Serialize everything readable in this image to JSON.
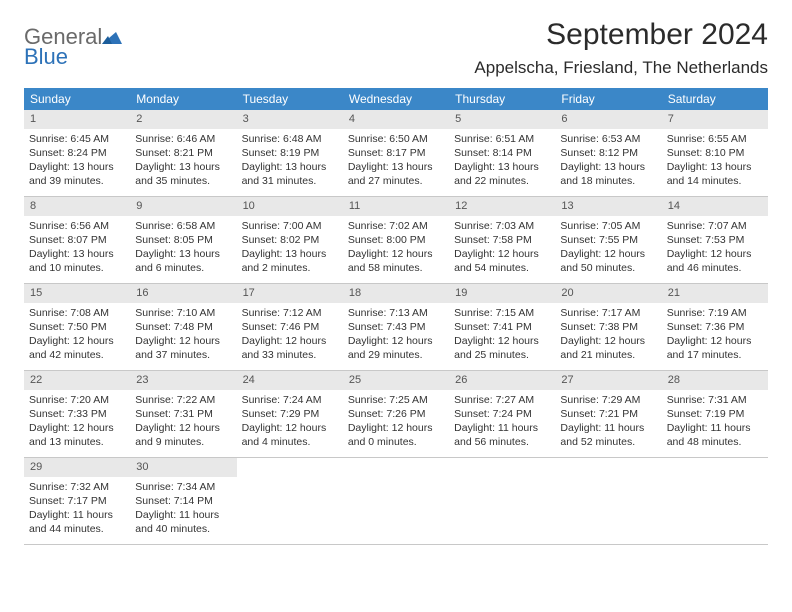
{
  "logo": {
    "part1": "General",
    "part2": "Blue"
  },
  "title": "September 2024",
  "location": "Appelscha, Friesland, The Netherlands",
  "colors": {
    "header_bg": "#3b87c8",
    "daynum_bg": "#e8e8e8",
    "border": "#c8c8c8",
    "logo_blue": "#2d72b8",
    "logo_gray": "#6a6a6a"
  },
  "days_of_week": [
    "Sunday",
    "Monday",
    "Tuesday",
    "Wednesday",
    "Thursday",
    "Friday",
    "Saturday"
  ],
  "weeks": [
    [
      {
        "n": "1",
        "sr": "Sunrise: 6:45 AM",
        "ss": "Sunset: 8:24 PM",
        "d1": "Daylight: 13 hours",
        "d2": "and 39 minutes."
      },
      {
        "n": "2",
        "sr": "Sunrise: 6:46 AM",
        "ss": "Sunset: 8:21 PM",
        "d1": "Daylight: 13 hours",
        "d2": "and 35 minutes."
      },
      {
        "n": "3",
        "sr": "Sunrise: 6:48 AM",
        "ss": "Sunset: 8:19 PM",
        "d1": "Daylight: 13 hours",
        "d2": "and 31 minutes."
      },
      {
        "n": "4",
        "sr": "Sunrise: 6:50 AM",
        "ss": "Sunset: 8:17 PM",
        "d1": "Daylight: 13 hours",
        "d2": "and 27 minutes."
      },
      {
        "n": "5",
        "sr": "Sunrise: 6:51 AM",
        "ss": "Sunset: 8:14 PM",
        "d1": "Daylight: 13 hours",
        "d2": "and 22 minutes."
      },
      {
        "n": "6",
        "sr": "Sunrise: 6:53 AM",
        "ss": "Sunset: 8:12 PM",
        "d1": "Daylight: 13 hours",
        "d2": "and 18 minutes."
      },
      {
        "n": "7",
        "sr": "Sunrise: 6:55 AM",
        "ss": "Sunset: 8:10 PM",
        "d1": "Daylight: 13 hours",
        "d2": "and 14 minutes."
      }
    ],
    [
      {
        "n": "8",
        "sr": "Sunrise: 6:56 AM",
        "ss": "Sunset: 8:07 PM",
        "d1": "Daylight: 13 hours",
        "d2": "and 10 minutes."
      },
      {
        "n": "9",
        "sr": "Sunrise: 6:58 AM",
        "ss": "Sunset: 8:05 PM",
        "d1": "Daylight: 13 hours",
        "d2": "and 6 minutes."
      },
      {
        "n": "10",
        "sr": "Sunrise: 7:00 AM",
        "ss": "Sunset: 8:02 PM",
        "d1": "Daylight: 13 hours",
        "d2": "and 2 minutes."
      },
      {
        "n": "11",
        "sr": "Sunrise: 7:02 AM",
        "ss": "Sunset: 8:00 PM",
        "d1": "Daylight: 12 hours",
        "d2": "and 58 minutes."
      },
      {
        "n": "12",
        "sr": "Sunrise: 7:03 AM",
        "ss": "Sunset: 7:58 PM",
        "d1": "Daylight: 12 hours",
        "d2": "and 54 minutes."
      },
      {
        "n": "13",
        "sr": "Sunrise: 7:05 AM",
        "ss": "Sunset: 7:55 PM",
        "d1": "Daylight: 12 hours",
        "d2": "and 50 minutes."
      },
      {
        "n": "14",
        "sr": "Sunrise: 7:07 AM",
        "ss": "Sunset: 7:53 PM",
        "d1": "Daylight: 12 hours",
        "d2": "and 46 minutes."
      }
    ],
    [
      {
        "n": "15",
        "sr": "Sunrise: 7:08 AM",
        "ss": "Sunset: 7:50 PM",
        "d1": "Daylight: 12 hours",
        "d2": "and 42 minutes."
      },
      {
        "n": "16",
        "sr": "Sunrise: 7:10 AM",
        "ss": "Sunset: 7:48 PM",
        "d1": "Daylight: 12 hours",
        "d2": "and 37 minutes."
      },
      {
        "n": "17",
        "sr": "Sunrise: 7:12 AM",
        "ss": "Sunset: 7:46 PM",
        "d1": "Daylight: 12 hours",
        "d2": "and 33 minutes."
      },
      {
        "n": "18",
        "sr": "Sunrise: 7:13 AM",
        "ss": "Sunset: 7:43 PM",
        "d1": "Daylight: 12 hours",
        "d2": "and 29 minutes."
      },
      {
        "n": "19",
        "sr": "Sunrise: 7:15 AM",
        "ss": "Sunset: 7:41 PM",
        "d1": "Daylight: 12 hours",
        "d2": "and 25 minutes."
      },
      {
        "n": "20",
        "sr": "Sunrise: 7:17 AM",
        "ss": "Sunset: 7:38 PM",
        "d1": "Daylight: 12 hours",
        "d2": "and 21 minutes."
      },
      {
        "n": "21",
        "sr": "Sunrise: 7:19 AM",
        "ss": "Sunset: 7:36 PM",
        "d1": "Daylight: 12 hours",
        "d2": "and 17 minutes."
      }
    ],
    [
      {
        "n": "22",
        "sr": "Sunrise: 7:20 AM",
        "ss": "Sunset: 7:33 PM",
        "d1": "Daylight: 12 hours",
        "d2": "and 13 minutes."
      },
      {
        "n": "23",
        "sr": "Sunrise: 7:22 AM",
        "ss": "Sunset: 7:31 PM",
        "d1": "Daylight: 12 hours",
        "d2": "and 9 minutes."
      },
      {
        "n": "24",
        "sr": "Sunrise: 7:24 AM",
        "ss": "Sunset: 7:29 PM",
        "d1": "Daylight: 12 hours",
        "d2": "and 4 minutes."
      },
      {
        "n": "25",
        "sr": "Sunrise: 7:25 AM",
        "ss": "Sunset: 7:26 PM",
        "d1": "Daylight: 12 hours",
        "d2": "and 0 minutes."
      },
      {
        "n": "26",
        "sr": "Sunrise: 7:27 AM",
        "ss": "Sunset: 7:24 PM",
        "d1": "Daylight: 11 hours",
        "d2": "and 56 minutes."
      },
      {
        "n": "27",
        "sr": "Sunrise: 7:29 AM",
        "ss": "Sunset: 7:21 PM",
        "d1": "Daylight: 11 hours",
        "d2": "and 52 minutes."
      },
      {
        "n": "28",
        "sr": "Sunrise: 7:31 AM",
        "ss": "Sunset: 7:19 PM",
        "d1": "Daylight: 11 hours",
        "d2": "and 48 minutes."
      }
    ],
    [
      {
        "n": "29",
        "sr": "Sunrise: 7:32 AM",
        "ss": "Sunset: 7:17 PM",
        "d1": "Daylight: 11 hours",
        "d2": "and 44 minutes."
      },
      {
        "n": "30",
        "sr": "Sunrise: 7:34 AM",
        "ss": "Sunset: 7:14 PM",
        "d1": "Daylight: 11 hours",
        "d2": "and 40 minutes."
      },
      {
        "empty": true
      },
      {
        "empty": true
      },
      {
        "empty": true
      },
      {
        "empty": true
      },
      {
        "empty": true
      }
    ]
  ]
}
